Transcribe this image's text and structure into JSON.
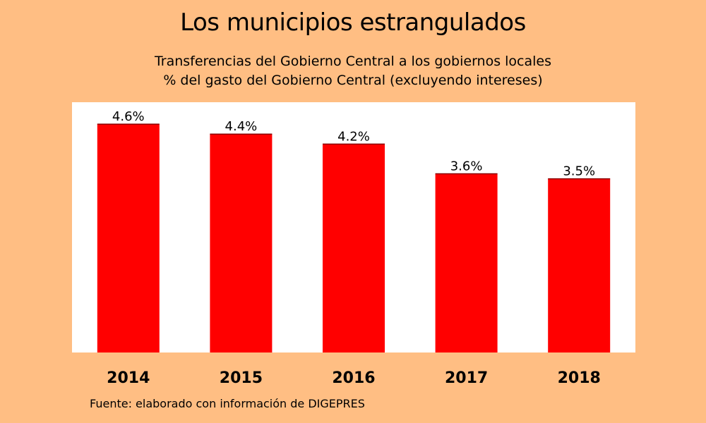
{
  "title": "Los municipios estrangulados",
  "subtitle_line1": "Transferencias del Gobierno Central a los gobiernos locales",
  "subtitle_line2": "% del gasto del Gobierno Central (excluyendo intereses)",
  "source": "Fuente: elaborado con información de DIGEPRES",
  "colors": {
    "background": "#FFBE83",
    "plot_area": "#FFFFFF",
    "bar": "#FF0000"
  },
  "chart_data": {
    "type": "bar",
    "title": "Los municipios estrangulados",
    "categories": [
      "2014",
      "2015",
      "2016",
      "2017",
      "2018"
    ],
    "values": [
      4.6,
      4.4,
      4.2,
      3.6,
      3.5
    ],
    "data_labels": [
      "4.6%",
      "4.4%",
      "4.2%",
      "3.6%",
      "3.5%"
    ],
    "ylim": [
      0,
      5
    ],
    "grid": false,
    "legend": "none"
  }
}
